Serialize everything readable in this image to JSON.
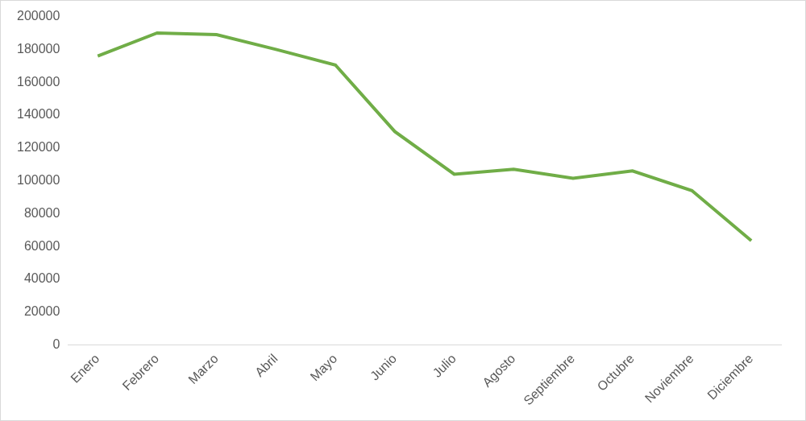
{
  "chart_data": {
    "type": "line",
    "categories": [
      "Enero",
      "Febrero",
      "Marzo",
      "Abril",
      "Mayo",
      "Junio",
      "Julio",
      "Agosto",
      "Septiembre",
      "Octubre",
      "Noviembre",
      "Diciembre"
    ],
    "values": [
      176000,
      190000,
      189000,
      180000,
      170500,
      130000,
      104000,
      107000,
      101500,
      106000,
      94000,
      63500
    ],
    "color": "#70ad47",
    "ylim": [
      0,
      200000
    ],
    "yticks": [
      0,
      20000,
      40000,
      60000,
      80000,
      100000,
      120000,
      140000,
      160000,
      180000,
      200000
    ],
    "grid": false
  }
}
